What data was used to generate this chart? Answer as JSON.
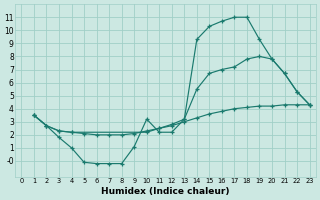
{
  "xlabel": "Humidex (Indice chaleur)",
  "bg_color": "#cce8e2",
  "grid_color": "#a0cfc7",
  "line_color": "#1a7a6e",
  "xlim": [
    -0.5,
    23.5
  ],
  "ylim": [
    -1.2,
    12.0
  ],
  "xticks": [
    0,
    1,
    2,
    3,
    4,
    5,
    6,
    7,
    8,
    9,
    10,
    11,
    12,
    13,
    14,
    15,
    16,
    17,
    18,
    19,
    20,
    21,
    22,
    23
  ],
  "ytick_vals": [
    0,
    1,
    2,
    3,
    4,
    5,
    6,
    7,
    8,
    9,
    10,
    11
  ],
  "ytick_labels": [
    "-0",
    "1",
    "2",
    "3",
    "4",
    "5",
    "6",
    "7",
    "8",
    "9",
    "10",
    "11"
  ],
  "line1_x": [
    1,
    2,
    3,
    4,
    5,
    6,
    7,
    8,
    9,
    10,
    11,
    12,
    13,
    14,
    15,
    16,
    17,
    18,
    19,
    20,
    21,
    22,
    23
  ],
  "line1_y": [
    3.5,
    2.7,
    1.8,
    1.0,
    -0.1,
    -0.2,
    -0.2,
    -0.2,
    1.1,
    3.2,
    2.2,
    2.2,
    3.2,
    9.3,
    10.3,
    10.7,
    11.0,
    11.0,
    9.3,
    7.8,
    6.7,
    5.3,
    4.3
  ],
  "line2_x": [
    1,
    2,
    3,
    4,
    10,
    11,
    12,
    13,
    14,
    15,
    16,
    17,
    18,
    19,
    20,
    21,
    22,
    23
  ],
  "line2_y": [
    3.5,
    2.7,
    2.3,
    2.2,
    2.2,
    2.5,
    2.8,
    3.2,
    5.5,
    6.7,
    7.0,
    7.2,
    7.8,
    8.0,
    7.8,
    6.7,
    5.3,
    4.3
  ],
  "line3_x": [
    1,
    2,
    3,
    4,
    5,
    6,
    7,
    8,
    9,
    10,
    11,
    12,
    13,
    14,
    15,
    16,
    17,
    18,
    19,
    20,
    21,
    22,
    23
  ],
  "line3_y": [
    3.5,
    2.7,
    2.3,
    2.2,
    2.1,
    2.0,
    2.0,
    2.0,
    2.1,
    2.3,
    2.5,
    2.7,
    3.0,
    3.3,
    3.6,
    3.8,
    4.0,
    4.1,
    4.2,
    4.2,
    4.3,
    4.3,
    4.3
  ]
}
